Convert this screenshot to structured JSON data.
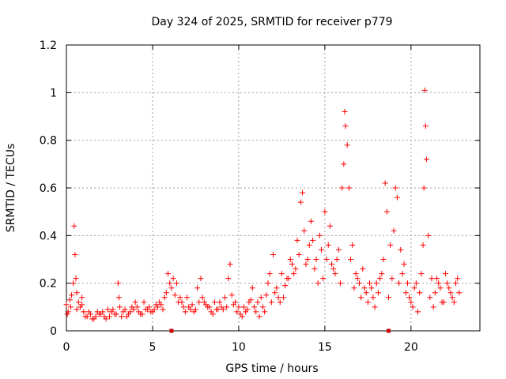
{
  "chart_data": {
    "type": "scatter",
    "title": "Day 324 of 2025, SRMTID for receiver p779",
    "xlabel": "GPS time / hours",
    "ylabel": "SRMTID / TECUs",
    "xlim": [
      0,
      24
    ],
    "ylim": [
      0,
      1.2
    ],
    "xticks": [
      0,
      5,
      10,
      15,
      20
    ],
    "xtick_labels": [
      "0",
      "5",
      "10",
      "15",
      "20"
    ],
    "yticks": [
      0,
      0.2,
      0.4,
      0.6,
      0.8,
      1.0,
      1.2
    ],
    "ytick_labels": [
      "0",
      "0.2",
      "0.4",
      "0.6",
      "0.8",
      "1",
      "1.2"
    ],
    "grid": true,
    "marker": "+",
    "color": "#ff0000",
    "series": [
      {
        "name": "SRMTID",
        "x": [
          0.0,
          0.1,
          0.2,
          0.3,
          0.4,
          0.45,
          0.5,
          0.55,
          0.6,
          0.7,
          0.8,
          0.9,
          1.0,
          1.2,
          1.4,
          1.6,
          1.8,
          2.0,
          2.2,
          2.4,
          2.6,
          2.8,
          3.0,
          3.05,
          3.2,
          3.4,
          3.6,
          3.8,
          4.0,
          4.2,
          4.4,
          4.6,
          4.8,
          5.0,
          5.2,
          5.4,
          5.6,
          5.8,
          5.9,
          6.0,
          6.1,
          6.2,
          6.3,
          6.5,
          6.8,
          7.0,
          7.2,
          7.4,
          7.6,
          7.8,
          8.0,
          8.2,
          8.4,
          8.6,
          8.8,
          9.0,
          9.2,
          9.4,
          9.5,
          9.6,
          9.8,
          10.0,
          10.2,
          10.4,
          10.6,
          10.8,
          11.0,
          11.2,
          11.4,
          11.6,
          11.8,
          12.0,
          12.2,
          12.4,
          12.6,
          12.8,
          13.0,
          13.2,
          13.4,
          13.6,
          13.7,
          13.8,
          14.0,
          14.2,
          14.3,
          14.4,
          14.6,
          14.8,
          15.0,
          15.2,
          15.4,
          15.6,
          15.8,
          16.0,
          16.1,
          16.15,
          16.2,
          16.3,
          16.4,
          16.6,
          16.8,
          17.0,
          17.2,
          17.4,
          17.6,
          17.8,
          18.0,
          18.2,
          18.4,
          18.5,
          18.6,
          18.8,
          18.9,
          19.0,
          19.1,
          19.2,
          19.4,
          19.6,
          19.8,
          20.0,
          20.2,
          20.4,
          20.5,
          20.6,
          20.7,
          20.75,
          20.8,
          20.85,
          20.9,
          21.0,
          21.2,
          21.4,
          21.6,
          21.8,
          22.0,
          22.2,
          22.4,
          22.6,
          22.8
        ],
        "y": [
          0.11,
          0.08,
          0.13,
          0.15,
          0.2,
          0.44,
          0.32,
          0.22,
          0.16,
          0.12,
          0.1,
          0.14,
          0.08,
          0.06,
          0.07,
          0.05,
          0.08,
          0.07,
          0.06,
          0.09,
          0.08,
          0.07,
          0.2,
          0.14,
          0.06,
          0.09,
          0.07,
          0.1,
          0.12,
          0.08,
          0.07,
          0.09,
          0.1,
          0.08,
          0.11,
          0.12,
          0.09,
          0.16,
          0.24,
          0.2,
          0.18,
          0.22,
          0.15,
          0.12,
          0.1,
          0.14,
          0.09,
          0.08,
          0.18,
          0.22,
          0.12,
          0.1,
          0.08,
          0.12,
          0.09,
          0.1,
          0.14,
          0.22,
          0.28,
          0.15,
          0.12,
          0.1,
          0.06,
          0.08,
          0.12,
          0.18,
          0.08,
          0.06,
          0.1,
          0.15,
          0.24,
          0.32,
          0.18,
          0.12,
          0.14,
          0.22,
          0.3,
          0.24,
          0.38,
          0.54,
          0.58,
          0.42,
          0.3,
          0.46,
          0.38,
          0.26,
          0.2,
          0.34,
          0.5,
          0.36,
          0.28,
          0.24,
          0.34,
          0.6,
          0.7,
          0.92,
          0.86,
          0.78,
          0.6,
          0.36,
          0.24,
          0.2,
          0.26,
          0.16,
          0.2,
          0.14,
          0.2,
          0.22,
          0.3,
          0.62,
          0.5,
          0.36,
          0.22,
          0.42,
          0.6,
          0.56,
          0.34,
          0.28,
          0.2,
          0.12,
          0.18,
          0.08,
          0.16,
          0.24,
          0.36,
          0.6,
          1.01,
          0.86,
          0.72,
          0.4,
          0.22,
          0.16,
          0.2,
          0.12,
          0.24,
          0.18,
          0.14,
          0.2,
          0.16
        ],
        "x_extra": [
          0.05,
          0.25,
          0.6,
          0.9,
          1.1,
          1.3,
          1.5,
          1.7,
          1.9,
          2.1,
          2.3,
          2.5,
          2.7,
          2.9,
          3.1,
          3.3,
          3.5,
          3.7,
          3.9,
          4.1,
          4.3,
          4.5,
          4.7,
          4.9,
          5.1,
          5.3,
          5.5,
          5.7,
          6.4,
          6.6,
          6.7,
          6.9,
          7.1,
          7.3,
          7.5,
          7.7,
          7.9,
          8.1,
          8.3,
          8.5,
          8.7,
          8.9,
          9.1,
          9.3,
          9.7,
          9.9,
          10.1,
          10.3,
          10.5,
          10.7,
          10.9,
          11.1,
          11.3,
          11.5,
          11.7,
          11.9,
          12.1,
          12.3,
          12.5,
          12.7,
          12.9,
          13.1,
          13.3,
          13.5,
          13.9,
          14.1,
          14.5,
          14.7,
          14.9,
          15.1,
          15.3,
          15.5,
          15.7,
          15.9,
          16.5,
          16.7,
          16.9,
          17.1,
          17.3,
          17.5,
          17.7,
          17.9,
          18.1,
          18.3,
          18.7,
          19.3,
          19.5,
          19.7,
          19.9,
          20.1,
          20.3,
          21.1,
          21.3,
          21.5,
          21.7,
          21.9,
          22.1,
          22.3,
          22.5,
          22.7
        ],
        "y_extra": [
          0.07,
          0.1,
          0.09,
          0.11,
          0.06,
          0.08,
          0.05,
          0.06,
          0.07,
          0.08,
          0.05,
          0.06,
          0.09,
          0.07,
          0.1,
          0.08,
          0.06,
          0.08,
          0.09,
          0.1,
          0.07,
          0.12,
          0.09,
          0.08,
          0.09,
          0.1,
          0.11,
          0.14,
          0.2,
          0.14,
          0.12,
          0.08,
          0.1,
          0.11,
          0.09,
          0.12,
          0.14,
          0.11,
          0.1,
          0.07,
          0.09,
          0.12,
          0.09,
          0.1,
          0.11,
          0.08,
          0.07,
          0.1,
          0.09,
          0.13,
          0.1,
          0.12,
          0.14,
          0.08,
          0.2,
          0.12,
          0.16,
          0.14,
          0.24,
          0.19,
          0.22,
          0.28,
          0.26,
          0.32,
          0.28,
          0.36,
          0.3,
          0.4,
          0.22,
          0.3,
          0.44,
          0.26,
          0.3,
          0.2,
          0.3,
          0.18,
          0.22,
          0.14,
          0.18,
          0.12,
          0.18,
          0.1,
          0.16,
          0.24,
          0.14,
          0.2,
          0.24,
          0.16,
          0.14,
          0.1,
          0.2,
          0.14,
          0.1,
          0.22,
          0.18,
          0.12,
          0.2,
          0.16,
          0.12,
          0.22
        ]
      }
    ],
    "markers_on_axis": [
      {
        "x": 6.1,
        "y": 0
      },
      {
        "x": 18.7,
        "y": 0
      }
    ]
  }
}
